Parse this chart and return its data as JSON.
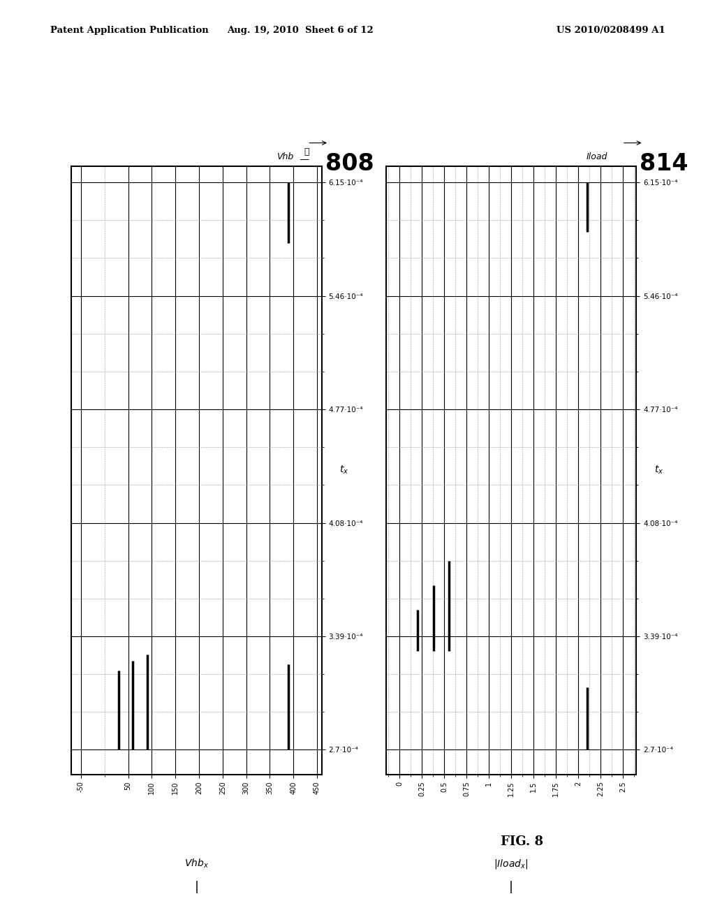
{
  "page_title_left": "Patent Application Publication",
  "page_title_mid": "Aug. 19, 2010  Sheet 6 of 12",
  "page_title_right": "US 2010/0208499 A1",
  "fig_label": "FIG. 8",
  "plot1": {
    "label": "808",
    "top_label": "Vhb",
    "ylabel_text": "Vhb",
    "ylabel_subscript": "x",
    "xlabel_text": "t",
    "xlabel_subscript": "x",
    "yticks": [
      -50,
      50,
      100,
      150,
      200,
      250,
      300,
      350,
      400,
      450
    ],
    "ytick_labels": [
      "-50",
      "50",
      "100",
      "150",
      "200",
      "250",
      "300",
      "350",
      "400",
      "450"
    ],
    "xticks": [
      0.00027,
      0.000339,
      0.000408,
      0.000477,
      0.000546,
      0.000615
    ],
    "xtick_labels": [
      "2.7·10⁻⁴",
      "3.39·10⁻⁴",
      "4.08·10⁻⁴",
      "4.77·10⁻⁴",
      "5.46·10⁻⁴",
      "6.15·10⁻⁴"
    ],
    "ylim": [
      -70,
      460
    ],
    "xlim": [
      0.000255,
      0.000625
    ],
    "waveforms": [
      {
        "x": [
          0.00027,
          0.000322
        ],
        "y": [
          390,
          390
        ],
        "lw": 2.5
      },
      {
        "x": [
          0.000578,
          0.000615
        ],
        "y": [
          390,
          390
        ],
        "lw": 2.5
      },
      {
        "x": [
          0.00027,
          0.000328
        ],
        "y": [
          90,
          90
        ],
        "lw": 2.5
      },
      {
        "x": [
          0.00027,
          0.000324
        ],
        "y": [
          60,
          60
        ],
        "lw": 2.5
      },
      {
        "x": [
          0.00027,
          0.000318
        ],
        "y": [
          30,
          30
        ],
        "lw": 2.5
      }
    ]
  },
  "plot2": {
    "label": "814",
    "top_label": "Iload",
    "ylabel_text": "|Iload",
    "ylabel_subscript": "x",
    "ylabel_suffix": "|",
    "xlabel_text": "t",
    "xlabel_subscript": "x",
    "yticks": [
      0,
      0.25,
      0.75,
      1.25,
      1.75,
      2.25,
      2.5
    ],
    "ytick_labels": [
      "0",
      "0.25",
      "0.75",
      "1.25",
      "1.75",
      "2.25",
      "2.5"
    ],
    "yticks_extra": [
      0.5,
      1.0,
      1.5,
      2.0
    ],
    "ytick_labels_extra": [
      "0.5",
      "1",
      "1.5",
      "2"
    ],
    "xticks": [
      0.00027,
      0.000339,
      0.000408,
      0.000477,
      0.000546,
      0.000615
    ],
    "xtick_labels": [
      "2.7·10⁻⁴",
      "3.39·10⁻⁴",
      "4.08·10⁻⁴",
      "4.77·10⁻⁴",
      "5.46·10⁻⁴",
      "6.15·10⁻⁴"
    ],
    "ylim": [
      -0.15,
      2.65
    ],
    "xlim": [
      0.000255,
      0.000625
    ],
    "waveforms": [
      {
        "x": [
          0.00027,
          0.000308
        ],
        "y": [
          2.1,
          2.1
        ],
        "lw": 2.5
      },
      {
        "x": [
          0.000585,
          0.000615
        ],
        "y": [
          2.1,
          2.1
        ],
        "lw": 2.5
      },
      {
        "x": [
          0.00033,
          0.000385
        ],
        "y": [
          0.55,
          0.55
        ],
        "lw": 2.5
      },
      {
        "x": [
          0.00033,
          0.00037
        ],
        "y": [
          0.38,
          0.38
        ],
        "lw": 2.5
      },
      {
        "x": [
          0.00033,
          0.000355
        ],
        "y": [
          0.2,
          0.2
        ],
        "lw": 2.5
      }
    ]
  },
  "background_color": "#ffffff",
  "plot_bg_color": "#ffffff",
  "line_color": "#000000"
}
